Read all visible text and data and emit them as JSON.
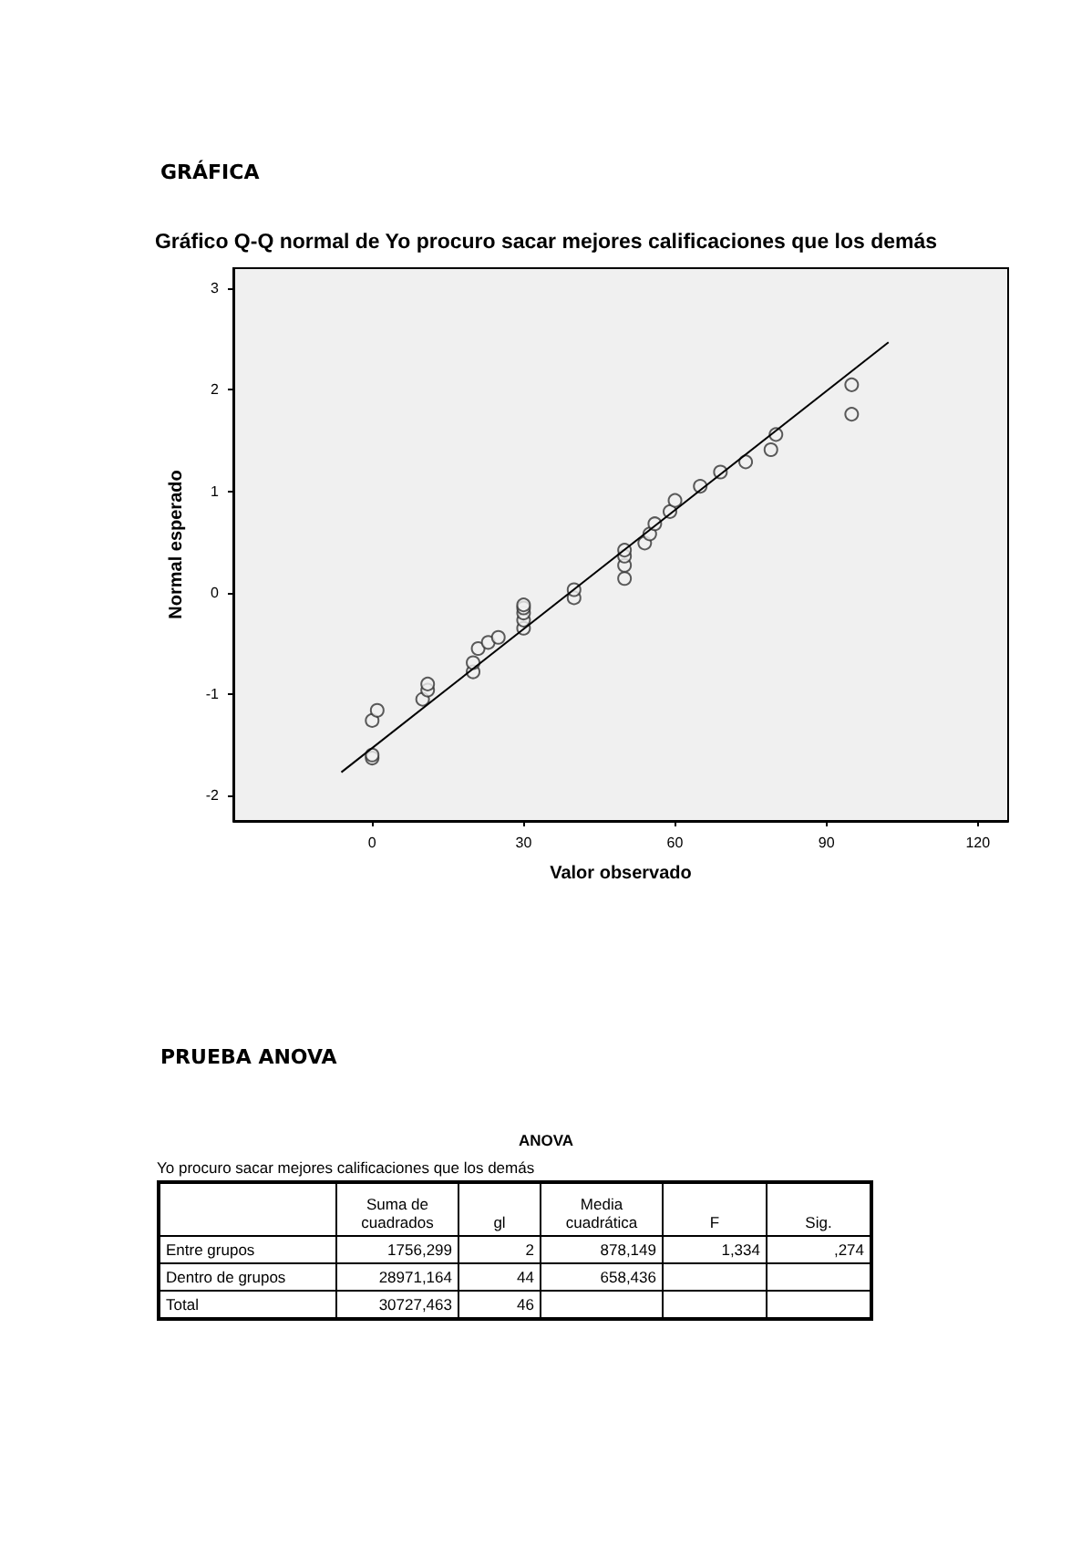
{
  "chart_data": [
    {
      "type": "scatter",
      "title": "Gráfico Q-Q normal de Yo procuro sacar mejores calificaciones que los demás",
      "xlabel": "Valor observado",
      "ylabel": "Normal esperado",
      "annotations": [
        "GRÁFICA"
      ],
      "series": [
        {
          "type": "scatter",
          "color": "#333333",
          "marker": "circle",
          "x": [
            0,
            0,
            0,
            1,
            10,
            11,
            11,
            20,
            20,
            21,
            23,
            25,
            30,
            30,
            30,
            30,
            30,
            40,
            40,
            50,
            50,
            50,
            50,
            54,
            55,
            56,
            59,
            60,
            65,
            69,
            74,
            79,
            80,
            95,
            95
          ],
          "values": [
            -1.63,
            -1.6,
            -1.26,
            -1.16,
            -1.05,
            -0.96,
            -0.9,
            -0.78,
            -0.69,
            -0.55,
            -0.49,
            -0.44,
            -0.35,
            -0.27,
            -0.2,
            -0.15,
            -0.12,
            -0.05,
            0.03,
            0.14,
            0.27,
            0.36,
            0.42,
            0.49,
            0.58,
            0.68,
            0.8,
            0.91,
            1.05,
            1.19,
            1.29,
            1.41,
            1.56,
            1.76,
            2.05
          ]
        },
        {
          "type": "line",
          "color": "#000000",
          "marker": "none",
          "x": [
            -6.1,
            102.3
          ],
          "values": [
            -1.77,
            2.47
          ]
        }
      ],
      "xlim": [
        -27.5,
        126
      ],
      "xticks": [
        0,
        30,
        60,
        90,
        120
      ],
      "ylim": [
        -2.25,
        3.2
      ],
      "yticks": [
        -2,
        -1,
        0,
        1,
        2,
        3
      ],
      "grid": false
    },
    {
      "type": "other",
      "title": "ANOVA",
      "subtitle": "Yo procuro sacar mejores calificaciones que los demás",
      "annotations": [
        "PRUEBA ANOVA",
        null,
        "Suma de cuadrados",
        "gl",
        "Media cuadrática",
        "F",
        "Sig.",
        "Entre grupos",
        "1756,299",
        "2",
        "878,149",
        "1,334",
        ",274",
        "Dentro de grupos",
        "28971,164",
        "44",
        "658,436",
        null,
        null,
        "Total",
        "30727,463",
        "46",
        null,
        null,
        null
      ]
    }
  ]
}
